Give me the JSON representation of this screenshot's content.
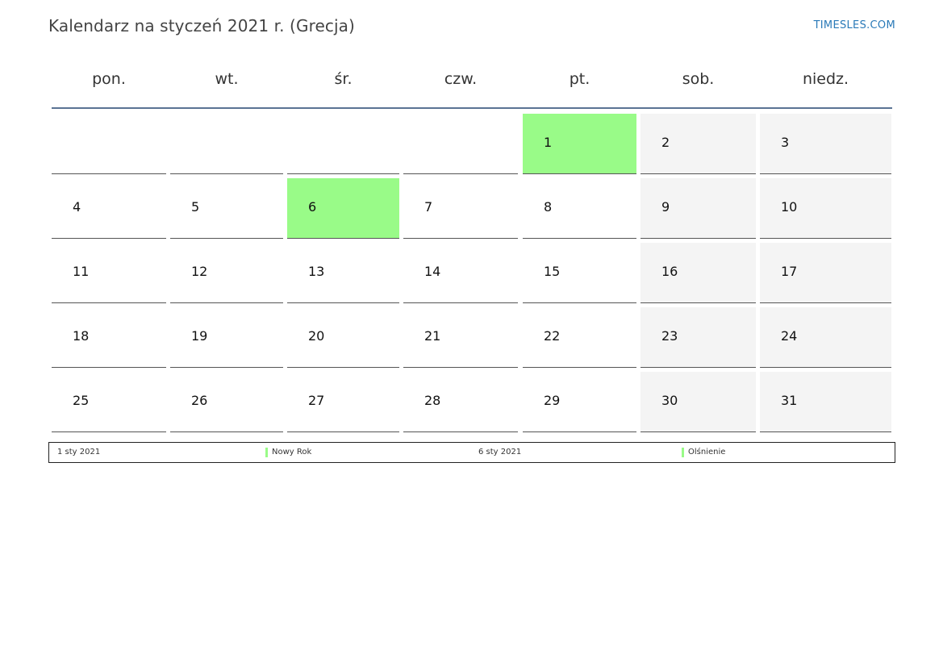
{
  "header": {
    "title": "Kalendarz na styczeń 2021 r. (Grecja)",
    "brand": "TIMESLES.COM"
  },
  "calendar": {
    "weekdays": [
      "pon.",
      "wt.",
      "śr.",
      "czw.",
      "pt.",
      "sob.",
      "niedz."
    ],
    "start_weekday_index": 4,
    "days_in_month": 31,
    "weekend_columns": [
      5,
      6
    ],
    "holiday_days": [
      1,
      6
    ],
    "colors": {
      "holiday": "#99fb88",
      "weekend": "#f4f4f4",
      "header_rule": "#5a7394"
    }
  },
  "legend": [
    {
      "date": "1 sty 2021",
      "name": "Nowy Rok"
    },
    {
      "date": "6 sty 2021",
      "name": "Olśnienie"
    }
  ]
}
